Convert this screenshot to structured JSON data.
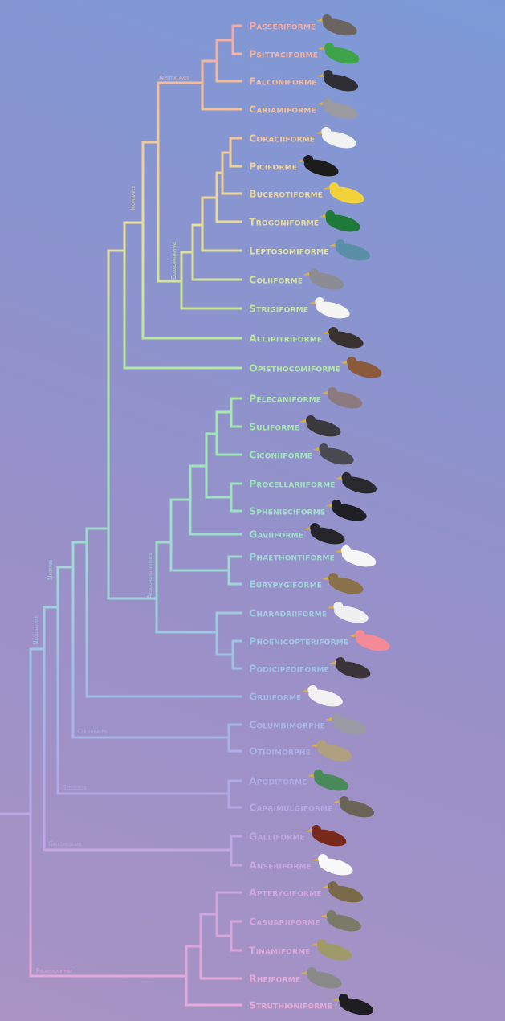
{
  "colors": {
    "gradient": [
      "#f4a2a6",
      "#f3c49a",
      "#e9dd9a",
      "#b9e89c",
      "#9ee8b4",
      "#9fd8d6",
      "#9fbde8",
      "#b2a9e4",
      "#d2a4de",
      "#ecaad6"
    ],
    "background_top": "#7d9ad8",
    "background_bottom": "#a893c4"
  },
  "leaves": [
    {
      "name": "Passeriforme",
      "bird": "#6b6460"
    },
    {
      "name": "Psittaciforme",
      "bird": "#3fa34a"
    },
    {
      "name": "Falconiforme",
      "bird": "#2e2e34"
    },
    {
      "name": "Cariamiforme",
      "bird": "#9a9aa0"
    },
    {
      "name": "Coraciiforme",
      "bird": "#f2f2f2"
    },
    {
      "name": "Piciforme",
      "bird": "#1c1c1c"
    },
    {
      "name": "Bucerotiforme",
      "bird": "#f2d23a"
    },
    {
      "name": "Trogoniforme",
      "bird": "#1f7a3a"
    },
    {
      "name": "Leptosomiforme",
      "bird": "#5b8fa8"
    },
    {
      "name": "Coliiforme",
      "bird": "#8c8c94"
    },
    {
      "name": "Strigiforme",
      "bird": "#f4f4f0"
    },
    {
      "name": "Accipitriforme",
      "bird": "#3a3230"
    },
    {
      "name": "Opisthocomiforme",
      "bird": "#8a5a3a"
    },
    {
      "name": "Pelecaniforme",
      "bird": "#8c7a80"
    },
    {
      "name": "Suliforme",
      "bird": "#3a3a3e"
    },
    {
      "name": "Ciconiiforme",
      "bird": "#4a4a52"
    },
    {
      "name": "Procellariiforme",
      "bird": "#2a2a2e"
    },
    {
      "name": "Sphenisciforme",
      "bird": "#1e1e24"
    },
    {
      "name": "Gaviiforme",
      "bird": "#26262a"
    },
    {
      "name": "Phaethontiforme",
      "bird": "#f6f6f6"
    },
    {
      "name": "Eurypygiforme",
      "bird": "#8a7048"
    },
    {
      "name": "Charadriiforme",
      "bird": "#f0f0f0"
    },
    {
      "name": "Phoenicopteriforme",
      "bird": "#f28a98"
    },
    {
      "name": "Podicipediforme",
      "bird": "#3a3438"
    },
    {
      "name": "Gruiforme",
      "bird": "#f2f2f2"
    },
    {
      "name": "Columbimorphe",
      "bird": "#9a9aa4"
    },
    {
      "name": "Otidimorphe",
      "bird": "#b0a080"
    },
    {
      "name": "Apodiforme",
      "bird": "#4a8a5a"
    },
    {
      "name": "Caprimulgiforme",
      "bird": "#6a6458"
    },
    {
      "name": "Galliforme",
      "bird": "#7a2a1a"
    },
    {
      "name": "Anseriforme",
      "bird": "#f8f8f8"
    },
    {
      "name": "Apterygiforme",
      "bird": "#7a6a4a"
    },
    {
      "name": "Casuariiforme",
      "bird": "#7a7a68"
    },
    {
      "name": "Tinamiforme",
      "bird": "#a09a6a"
    },
    {
      "name": "Rheiforme",
      "bird": "#8a8a88"
    },
    {
      "name": "Struthioniforme",
      "bird": "#1e1e22"
    }
  ],
  "clades": [
    {
      "name": "Australaves"
    },
    {
      "name": "Inopinaves"
    },
    {
      "name": "Coraciimorphae"
    },
    {
      "name": "Aequorlitornithes"
    },
    {
      "name": "Neoaves"
    },
    {
      "name": "Neognathae"
    },
    {
      "name": "Columbaves"
    },
    {
      "name": "Strisores"
    },
    {
      "name": "Galloanserae"
    },
    {
      "name": "Palaeognathae"
    }
  ]
}
